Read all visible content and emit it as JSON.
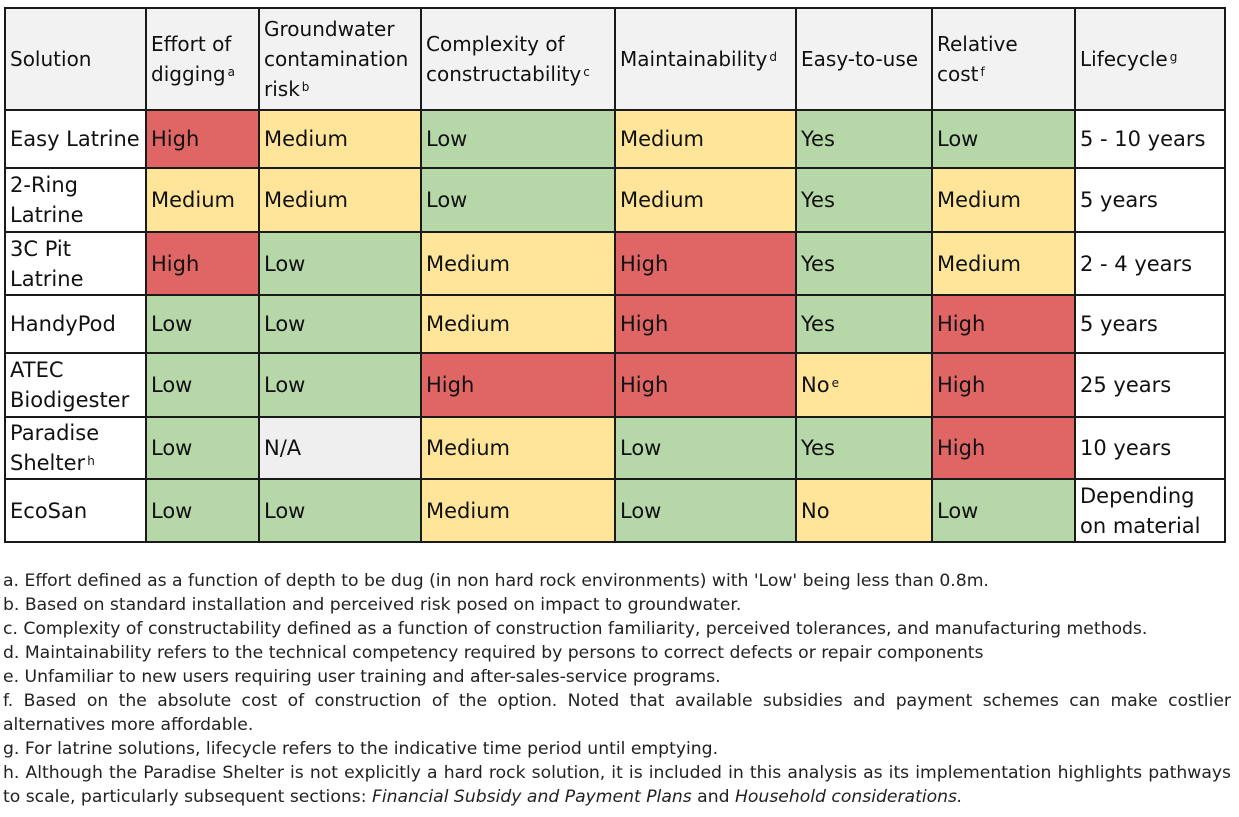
{
  "table": {
    "headers": [
      {
        "text": "Solution",
        "sup": ""
      },
      {
        "text": "Effort of digging",
        "sup": "a"
      },
      {
        "text": "Groundwater contamination risk",
        "sup": "b"
      },
      {
        "text": "Complexity of constructability",
        "sup": "c"
      },
      {
        "text": "Maintainability",
        "sup": "d"
      },
      {
        "text": "Easy-to-use",
        "sup": ""
      },
      {
        "text": "Relative cost",
        "sup": "f"
      },
      {
        "text": "Lifecycle",
        "sup": "g"
      }
    ],
    "rows": [
      {
        "solution": "Easy Latrine",
        "solution_sup": "",
        "effort": "High",
        "groundwater": "Medium",
        "complexity": "Low",
        "maintainability": "Medium",
        "easy": "Yes",
        "easy_sup": "",
        "cost": "Low",
        "lifecycle": "5 - 10 years"
      },
      {
        "solution": "2-Ring Latrine",
        "solution_sup": "",
        "effort": "Medium",
        "groundwater": "Medium",
        "complexity": "Low",
        "maintainability": "Medium",
        "easy": "Yes",
        "easy_sup": "",
        "cost": "Medium",
        "lifecycle": "5 years"
      },
      {
        "solution": "3C Pit Latrine",
        "solution_sup": "",
        "effort": "High",
        "groundwater": "Low",
        "complexity": "Medium",
        "maintainability": "High",
        "easy": "Yes",
        "easy_sup": "",
        "cost": "Medium",
        "lifecycle": "2 - 4 years"
      },
      {
        "solution": "HandyPod",
        "solution_sup": "",
        "effort": "Low",
        "groundwater": "Low",
        "complexity": "Medium",
        "maintainability": "High",
        "easy": "Yes",
        "easy_sup": "",
        "cost": "High",
        "lifecycle": "5 years"
      },
      {
        "solution": "ATEC Biodigester",
        "solution_sup": "",
        "effort": "Low",
        "groundwater": "Low",
        "complexity": "High",
        "maintainability": "High",
        "easy": "No",
        "easy_sup": "e",
        "cost": "High",
        "lifecycle": "25 years"
      },
      {
        "solution": "Paradise Shelter",
        "solution_sup": "h",
        "effort": "Low",
        "groundwater": "N/A",
        "complexity": "Medium",
        "maintainability": "Low",
        "easy": "Yes",
        "easy_sup": "",
        "cost": "High",
        "lifecycle": "10 years"
      },
      {
        "solution": "EcoSan",
        "solution_sup": "",
        "effort": "Low",
        "groundwater": "Low",
        "complexity": "Medium",
        "maintainability": "Low",
        "easy": "No",
        "easy_sup": "",
        "cost": "Low",
        "lifecycle": "Depending on material"
      }
    ]
  },
  "colors": {
    "High": "#e06666",
    "Medium": "#ffe599",
    "Low": "#b6d7a8",
    "N/A": "#efefef",
    "header_bg": "#f2f2f2"
  },
  "notes": {
    "a": "a. Effort defined as a function of depth to be dug (in non hard rock environments) with 'Low' being less than 0.8m.",
    "b": "b. Based on standard installation and perceived risk posed on impact to groundwater.",
    "c": "c. Complexity of constructability defined as a function of construction familiarity, perceived tolerances, and manufacturing methods.",
    "d": "d. Maintainability refers to the technical competency required by persons to correct defects or repair components",
    "e": "e. Unfamiliar to new users requiring user training and after-sales-service programs.",
    "f": "f. Based on the absolute cost of construction of the option. Noted that available subsidies and payment schemes can make costlier alternatives more affordable.",
    "g": "g. For latrine solutions, lifecycle refers to the indicative time period until emptying.",
    "h_prefix": "h. Although the Paradise Shelter is not explicitly a hard rock solution, it is included in this analysis as its implementation highlights pathways to scale, particularly subsequent sections: ",
    "h_em1": "Financial Subsidy and Payment Plans",
    "h_and": " and ",
    "h_em2": "Household considerations."
  }
}
